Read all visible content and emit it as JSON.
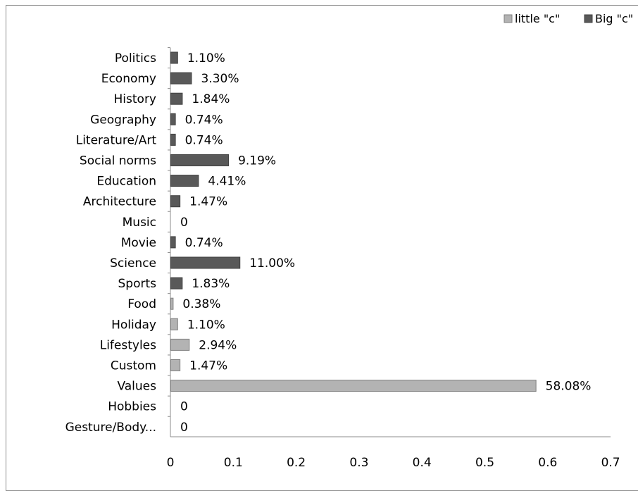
{
  "chart_data": {
    "type": "bar",
    "orientation": "horizontal",
    "categories": [
      "Politics",
      "Economy",
      "History",
      "Geography",
      "Literature/Art",
      "Social norms",
      "Education",
      "Architecture",
      "Music",
      "Movie",
      "Science",
      "Sports",
      "Food",
      "Holiday",
      "Lifestyles",
      "Custom",
      "Values",
      "Hobbies",
      "Gesture/Body..."
    ],
    "values": [
      0.011,
      0.033,
      0.0184,
      0.0074,
      0.0074,
      0.0919,
      0.0441,
      0.0147,
      0,
      0.0074,
      0.11,
      0.0183,
      0.0038,
      0.011,
      0.0294,
      0.0147,
      0.5808,
      0,
      0
    ],
    "value_labels": [
      "1.10%",
      "3.30%",
      "1.84%",
      "0.74%",
      "0.74%",
      "9.19%",
      "4.41%",
      "1.47%",
      "0",
      "0.74%",
      "11.00%",
      "1.83%",
      "0.38%",
      "1.10%",
      "2.94%",
      "1.47%",
      "58.08%",
      "0",
      "0"
    ],
    "groups": [
      "Big \"c\"",
      "Big \"c\"",
      "Big \"c\"",
      "Big \"c\"",
      "Big \"c\"",
      "Big \"c\"",
      "Big \"c\"",
      "Big \"c\"",
      "Big \"c\"",
      "Big \"c\"",
      "Big \"c\"",
      "Big \"c\"",
      "little \"c\"",
      "little \"c\"",
      "little \"c\"",
      "little \"c\"",
      "little \"c\"",
      "little \"c\"",
      "little \"c\""
    ],
    "series": [
      {
        "name": "little \"c\"",
        "color": "#b3b3b3"
      },
      {
        "name": "Big \"c\"",
        "color": "#595959"
      }
    ],
    "xlim": [
      0,
      0.7
    ],
    "xticks": [
      "0",
      "0.1",
      "0.2",
      "0.3",
      "0.4",
      "0.5",
      "0.6",
      "0.7"
    ],
    "title": "",
    "xlabel": "",
    "ylabel": "",
    "grid": false,
    "legend_position": "top-right"
  }
}
